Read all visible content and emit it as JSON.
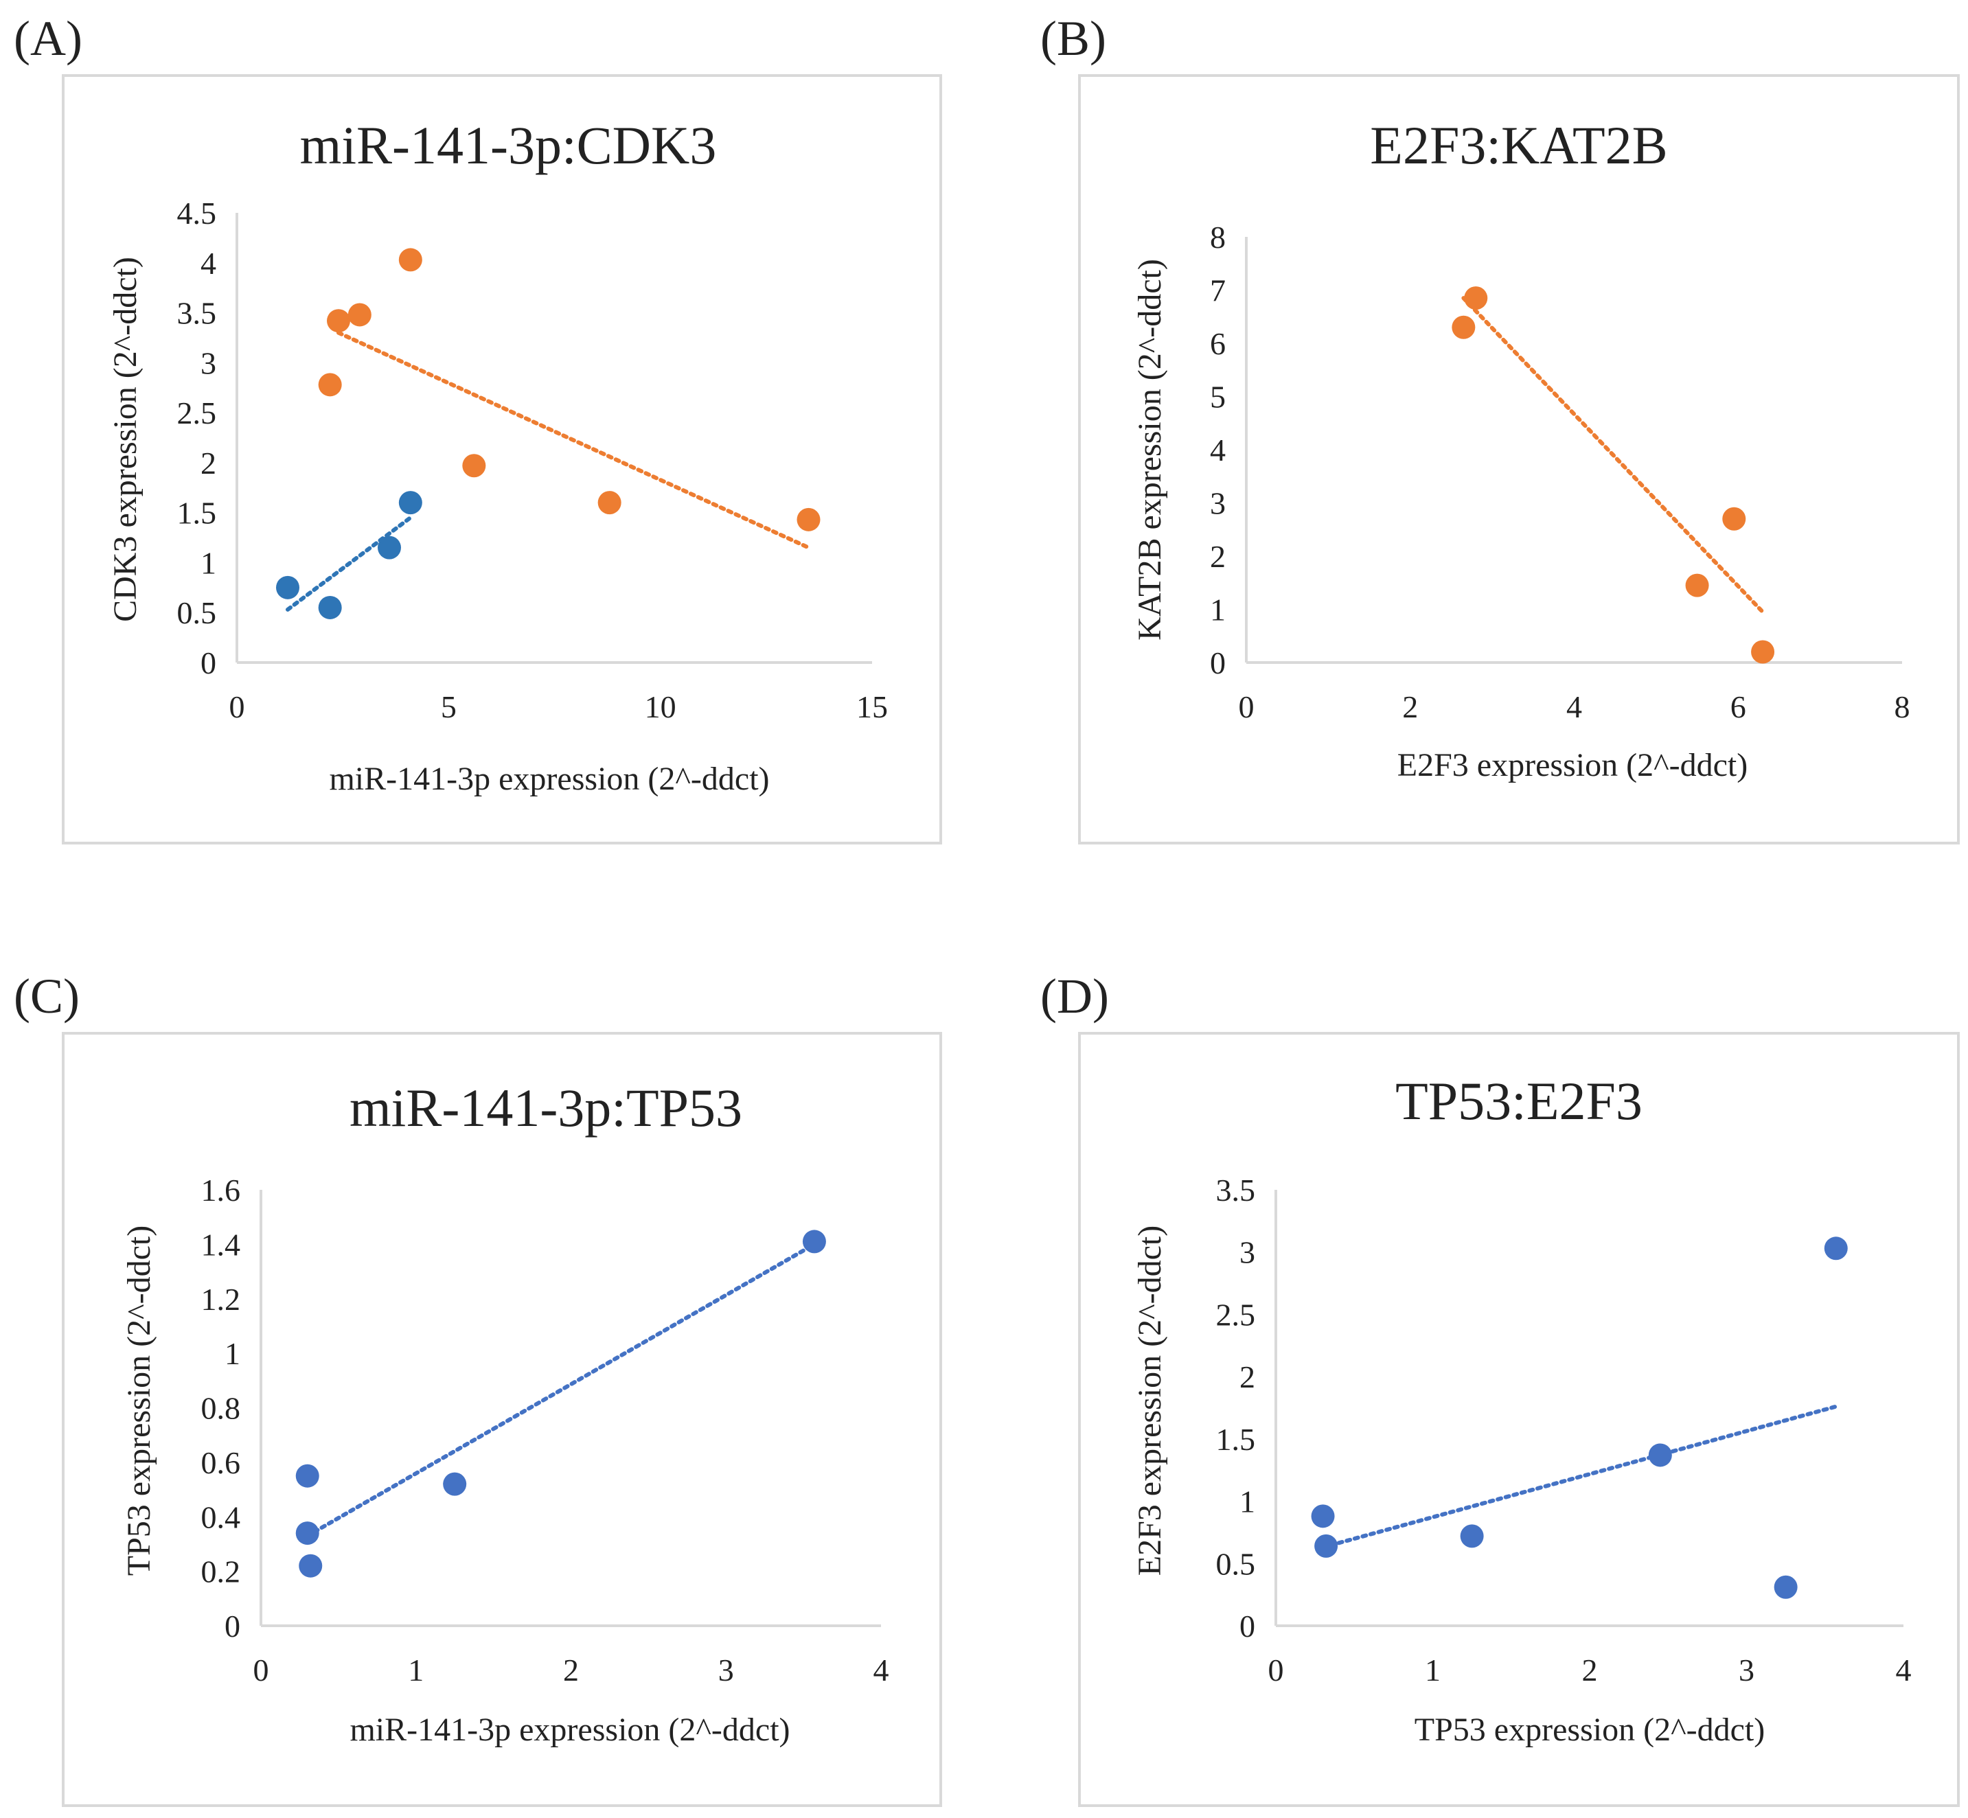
{
  "chart_data": [
    {
      "panel_label": "(A)",
      "type": "scatter",
      "title": "miR-141-3p:CDK3",
      "xlabel": "miR-141-3p expression (2^-ddct)",
      "ylabel": "CDK3 expression (2^-ddct)",
      "xlim": [
        0,
        15
      ],
      "ylim": [
        0,
        4.5
      ],
      "xticks": [
        "0",
        "5",
        "10",
        "15"
      ],
      "yticks": [
        "0",
        "0.5",
        "1",
        "1.5",
        "2",
        "2.5",
        "3",
        "3.5",
        "4",
        "4.5"
      ],
      "series": [
        {
          "name": "orange",
          "color": "#ed7d31",
          "points": [
            [
              2.2,
              2.78
            ],
            [
              2.4,
              3.42
            ],
            [
              2.9,
              3.48
            ],
            [
              4.1,
              4.03
            ],
            [
              5.6,
              1.97
            ],
            [
              8.8,
              1.6
            ],
            [
              13.5,
              1.43
            ]
          ],
          "trendline": [
            [
              2.4,
              3.3
            ],
            [
              13.5,
              1.15
            ]
          ]
        },
        {
          "name": "blue",
          "color": "#2e75b6",
          "points": [
            [
              1.2,
              0.75
            ],
            [
              2.2,
              0.55
            ],
            [
              3.6,
              1.15
            ],
            [
              4.1,
              1.6
            ]
          ],
          "trendline": [
            [
              1.2,
              0.53
            ],
            [
              4.1,
              1.45
            ]
          ]
        }
      ]
    },
    {
      "panel_label": "(B)",
      "type": "scatter",
      "title": "E2F3:KAT2B",
      "xlabel": "E2F3 expression (2^-ddct)",
      "ylabel": "KAT2B expression (2^-ddct)",
      "xlim": [
        0,
        8
      ],
      "ylim": [
        0,
        8
      ],
      "xticks": [
        "0",
        "2",
        "4",
        "6",
        "8"
      ],
      "yticks": [
        "0",
        "1",
        "2",
        "3",
        "4",
        "5",
        "6",
        "7",
        "8"
      ],
      "series": [
        {
          "name": "orange",
          "color": "#ed7d31",
          "points": [
            [
              2.65,
              6.3
            ],
            [
              2.8,
              6.85
            ],
            [
              5.5,
              1.45
            ],
            [
              5.95,
              2.7
            ],
            [
              6.3,
              0.2
            ]
          ],
          "trendline": [
            [
              2.65,
              6.85
            ],
            [
              6.3,
              0.95
            ]
          ]
        }
      ]
    },
    {
      "panel_label": "(C)",
      "type": "scatter",
      "title": "miR-141-3p:TP53",
      "xlabel": "miR-141-3p expression (2^-ddct)",
      "ylabel": "TP53 expression (2^-ddct)",
      "xlim": [
        0,
        4
      ],
      "ylim": [
        0,
        1.6
      ],
      "xticks": [
        "0",
        "1",
        "2",
        "3",
        "4"
      ],
      "yticks": [
        "0",
        "0.2",
        "0.4",
        "0.6",
        "0.8",
        "1",
        "1.2",
        "1.4",
        "1.6"
      ],
      "series": [
        {
          "name": "blue",
          "color": "#4472c4",
          "points": [
            [
              0.3,
              0.55
            ],
            [
              0.3,
              0.34
            ],
            [
              0.32,
              0.22
            ],
            [
              1.25,
              0.52
            ],
            [
              3.57,
              1.41
            ]
          ],
          "trendline": [
            [
              0.3,
              0.33
            ],
            [
              3.57,
              1.4
            ]
          ]
        }
      ]
    },
    {
      "panel_label": "(D)",
      "type": "scatter",
      "title": "TP53:E2F3",
      "xlabel": "TP53 expression (2^-ddct)",
      "ylabel": "E2F3 expression (2^-ddct)",
      "xlim": [
        0,
        4
      ],
      "ylim": [
        0,
        3.5
      ],
      "xticks": [
        "0",
        "1",
        "2",
        "3",
        "4"
      ],
      "yticks": [
        "0",
        "0.5",
        "1",
        "1.5",
        "2",
        "2.5",
        "3",
        "3.5"
      ],
      "series": [
        {
          "name": "blue",
          "color": "#4472c4",
          "points": [
            [
              0.3,
              0.88
            ],
            [
              0.32,
              0.64
            ],
            [
              1.25,
              0.72
            ],
            [
              2.45,
              1.37
            ],
            [
              3.25,
              0.31
            ],
            [
              3.57,
              3.03
            ]
          ],
          "trendline": [
            [
              0.3,
              0.63
            ],
            [
              3.57,
              1.76
            ]
          ]
        }
      ]
    }
  ]
}
